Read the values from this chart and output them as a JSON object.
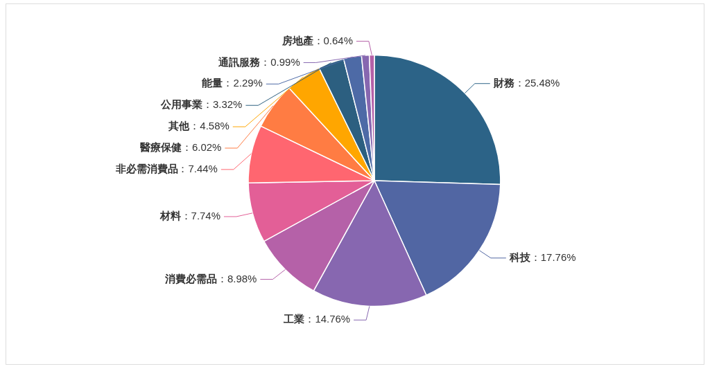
{
  "chart_data": {
    "type": "pie",
    "categories": [
      "財務",
      "科技",
      "工業",
      "消費必需品",
      "材料",
      "非必需消費品",
      "醫療保健",
      "其他",
      "公用事業",
      "能量",
      "通訊服務",
      "房地產"
    ],
    "values": [
      25.48,
      17.76,
      14.76,
      8.98,
      7.74,
      7.44,
      6.02,
      4.58,
      3.32,
      2.29,
      0.99,
      0.64
    ],
    "value_labels": [
      "：25.48%",
      "：17.76%",
      "：14.76%",
      "：8.98%",
      "：7.74%",
      "：7.44%",
      "：6.02%",
      "：4.58%",
      "：3.32%",
      "：2.29%",
      "：0.99%",
      "：0.64%"
    ],
    "colors": [
      "#2c6387",
      "#5166a3",
      "#8767b0",
      "#b561a8",
      "#e35f97",
      "#ff6670",
      "#ff7c43",
      "#ffa600",
      "#2c5f80",
      "#4d6aa6",
      "#8767b0",
      "#b561a8"
    ],
    "legend": false
  }
}
